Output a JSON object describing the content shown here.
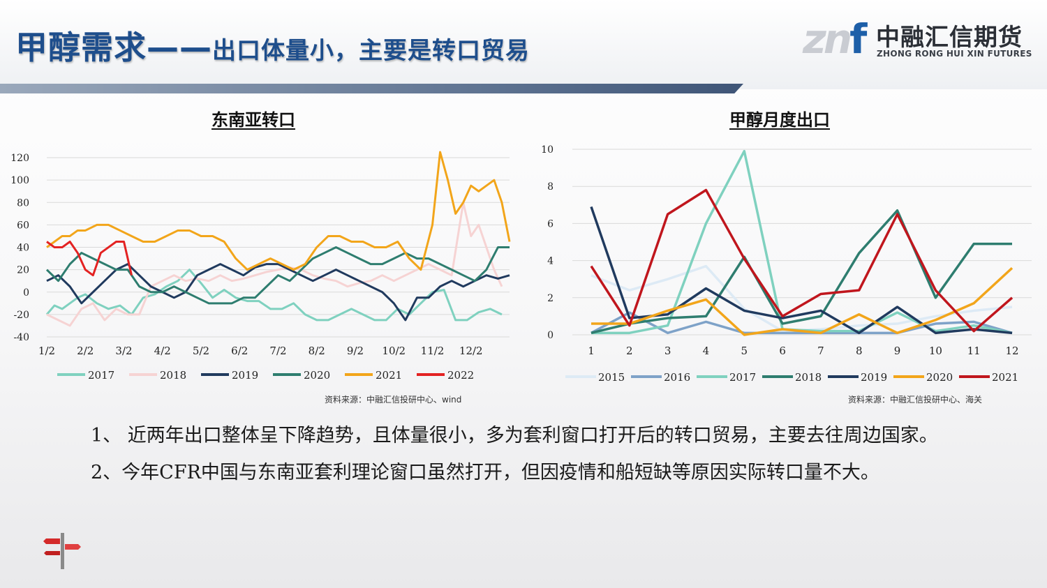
{
  "header": {
    "title_main": "甲醇需求——",
    "title_sub": "出口体量小，主要是转口贸易",
    "logo_cn": "中融汇信期货",
    "logo_en": "ZHONG RONG HUI XIN FUTURES"
  },
  "left": {
    "title": "东南亚转口",
    "source": "资料来源：中融汇信投研中心、wind"
  },
  "right": {
    "title": "甲醇月度出口",
    "source": "资料来源：中融汇信投研中心、海关"
  },
  "bullets": {
    "line1": "1、 近两年出口整体呈下降趋势，且体量很小，多为套利窗口打开后的转口贸易，主要去往周边国家。",
    "line2": "2、今年CFR中国与东南亚套利理论窗口虽然打开，但因疫情和船短缺等原因实际转口量不大。"
  },
  "chart_data": [
    {
      "type": "line",
      "title": "东南亚转口",
      "x_label_values": [
        "1/2",
        "2/2",
        "3/2",
        "4/2",
        "5/2",
        "6/2",
        "7/2",
        "8/2",
        "9/2",
        "10/2",
        "11/2",
        "12/2"
      ],
      "x_domain": [
        0,
        12
      ],
      "ylim": [
        -40,
        130
      ],
      "yticks": [
        -40,
        -20,
        0,
        20,
        40,
        60,
        80,
        100,
        120
      ],
      "grid": true,
      "legend_position": "bottom",
      "series": [
        {
          "name": "2017",
          "color": "#7fd1bf",
          "x": [
            0,
            0.2,
            0.4,
            0.6,
            0.8,
            1.0,
            1.3,
            1.6,
            1.9,
            2.2,
            2.5,
            2.8,
            3.1,
            3.4,
            3.7,
            4.0,
            4.3,
            4.6,
            4.9,
            5.2,
            5.5,
            5.8,
            6.1,
            6.4,
            6.7,
            7.0,
            7.3,
            7.6,
            7.9,
            8.2,
            8.5,
            8.8,
            9.1,
            9.4,
            9.7,
            10.0,
            10.3,
            10.6,
            10.9,
            11.2,
            11.5,
            11.8
          ],
          "y": [
            -20,
            -12,
            -15,
            -10,
            -5,
            -2,
            -10,
            -15,
            -12,
            -20,
            -5,
            -2,
            5,
            10,
            20,
            8,
            -5,
            2,
            -5,
            -8,
            -8,
            -15,
            -15,
            -10,
            -20,
            -25,
            -25,
            -20,
            -15,
            -20,
            -25,
            -25,
            -15,
            -20,
            -10,
            0,
            2,
            -25,
            -25,
            -18,
            -15,
            -20
          ]
        },
        {
          "name": "2018",
          "color": "#f6d3d3",
          "x": [
            0,
            0.3,
            0.6,
            0.9,
            1.2,
            1.5,
            1.8,
            2.1,
            2.4,
            2.7,
            3.0,
            3.3,
            3.6,
            3.9,
            4.2,
            4.5,
            4.8,
            5.1,
            5.4,
            5.7,
            6.0,
            6.3,
            6.6,
            6.9,
            7.2,
            7.5,
            7.8,
            8.1,
            8.4,
            8.7,
            9.0,
            9.3,
            9.6,
            9.9,
            10.2,
            10.5,
            10.8,
            11.0,
            11.2,
            11.4,
            11.6,
            11.8
          ],
          "y": [
            -20,
            -25,
            -30,
            -15,
            -10,
            -25,
            -15,
            -20,
            -20,
            5,
            10,
            15,
            10,
            12,
            10,
            15,
            10,
            12,
            15,
            18,
            20,
            22,
            20,
            15,
            12,
            10,
            5,
            8,
            10,
            15,
            10,
            15,
            20,
            25,
            20,
            15,
            80,
            50,
            60,
            40,
            20,
            5
          ]
        },
        {
          "name": "2019",
          "color": "#203a5e",
          "x": [
            0,
            0.3,
            0.6,
            0.9,
            1.2,
            1.5,
            1.8,
            2.1,
            2.4,
            2.7,
            3.0,
            3.3,
            3.6,
            3.9,
            4.2,
            4.5,
            4.8,
            5.1,
            5.4,
            5.7,
            6.0,
            6.3,
            6.6,
            6.9,
            7.2,
            7.5,
            7.8,
            8.1,
            8.4,
            8.7,
            9.0,
            9.3,
            9.6,
            9.9,
            10.2,
            10.5,
            10.8,
            11.1,
            11.4,
            11.7,
            12.0
          ],
          "y": [
            10,
            15,
            5,
            -10,
            0,
            10,
            20,
            25,
            15,
            5,
            0,
            -5,
            0,
            15,
            20,
            25,
            20,
            15,
            22,
            25,
            25,
            20,
            15,
            10,
            15,
            20,
            15,
            10,
            5,
            0,
            -10,
            -25,
            -5,
            -5,
            5,
            10,
            5,
            10,
            15,
            12,
            15
          ]
        },
        {
          "name": "2020",
          "color": "#2e7d6f",
          "x": [
            0,
            0.3,
            0.6,
            0.9,
            1.2,
            1.5,
            1.8,
            2.1,
            2.4,
            2.7,
            3.0,
            3.3,
            3.6,
            3.9,
            4.2,
            4.5,
            4.8,
            5.1,
            5.4,
            5.7,
            6.0,
            6.3,
            6.6,
            6.9,
            7.2,
            7.5,
            7.8,
            8.1,
            8.4,
            8.7,
            9.0,
            9.3,
            9.6,
            9.9,
            10.2,
            10.5,
            10.8,
            11.1,
            11.4,
            11.7,
            12.0
          ],
          "y": [
            20,
            10,
            25,
            35,
            30,
            25,
            20,
            20,
            5,
            0,
            0,
            5,
            0,
            -5,
            -10,
            -10,
            -10,
            -5,
            -5,
            5,
            15,
            10,
            20,
            30,
            35,
            40,
            35,
            30,
            25,
            25,
            30,
            35,
            30,
            30,
            25,
            20,
            15,
            10,
            20,
            40,
            40
          ]
        },
        {
          "name": "2021",
          "color": "#f2a51a",
          "x": [
            0,
            0.2,
            0.4,
            0.6,
            0.8,
            1.0,
            1.3,
            1.6,
            1.9,
            2.2,
            2.5,
            2.8,
            3.1,
            3.4,
            3.7,
            4.0,
            4.3,
            4.6,
            4.9,
            5.2,
            5.5,
            5.8,
            6.1,
            6.4,
            6.7,
            7.0,
            7.3,
            7.6,
            7.9,
            8.2,
            8.5,
            8.8,
            9.1,
            9.4,
            9.7,
            10.0,
            10.2,
            10.4,
            10.6,
            10.8,
            11.0,
            11.2,
            11.4,
            11.6,
            11.8,
            12.0
          ],
          "y": [
            40,
            45,
            50,
            50,
            55,
            55,
            60,
            60,
            55,
            50,
            45,
            45,
            50,
            55,
            55,
            50,
            50,
            45,
            30,
            20,
            25,
            30,
            25,
            20,
            25,
            40,
            50,
            50,
            45,
            45,
            40,
            40,
            45,
            30,
            20,
            60,
            125,
            100,
            70,
            80,
            95,
            90,
            95,
            100,
            80,
            45
          ]
        },
        {
          "name": "2022",
          "color": "#e32222",
          "x": [
            0,
            0.2,
            0.4,
            0.6,
            0.8,
            1.0,
            1.2,
            1.4,
            1.6,
            1.8,
            2.0,
            2.2
          ],
          "y": [
            45,
            40,
            40,
            45,
            35,
            20,
            15,
            35,
            40,
            45,
            45,
            15
          ]
        }
      ]
    },
    {
      "type": "line",
      "title": "甲醇月度出口",
      "categories": [
        "1",
        "2",
        "3",
        "4",
        "5",
        "6",
        "7",
        "8",
        "9",
        "10",
        "11",
        "12"
      ],
      "ylim": [
        0,
        10
      ],
      "yticks": [
        0,
        2,
        4,
        6,
        8,
        10
      ],
      "grid": true,
      "legend_position": "bottom",
      "series": [
        {
          "name": "2015",
          "color": "#ddeaf5",
          "values": [
            3.2,
            2.4,
            3.0,
            3.7,
            1.4,
            0.2,
            0.3,
            0.5,
            0.6,
            1.0,
            1.3,
            1.5
          ]
        },
        {
          "name": "2016",
          "color": "#7ea2c8",
          "values": [
            0.1,
            1.2,
            0.1,
            0.7,
            0.1,
            0.1,
            0.1,
            0.1,
            0.1,
            0.6,
            0.7,
            0.1
          ]
        },
        {
          "name": "2017",
          "color": "#7fd1bf",
          "values": [
            0.1,
            0.1,
            0.5,
            6.0,
            9.9,
            0.3,
            0.2,
            0.2,
            1.2,
            0.2,
            0.5,
            0.1
          ]
        },
        {
          "name": "2018",
          "color": "#2e7d6f",
          "values": [
            0.1,
            0.6,
            0.9,
            1.0,
            4.2,
            0.6,
            1.0,
            4.4,
            6.7,
            2.0,
            4.9,
            4.9
          ]
        },
        {
          "name": "2019",
          "color": "#203a5e",
          "values": [
            6.9,
            0.9,
            1.1,
            2.5,
            1.3,
            0.9,
            1.3,
            0.1,
            1.5,
            0.1,
            0.3,
            0.1
          ]
        },
        {
          "name": "2020",
          "color": "#f2a51a",
          "values": [
            0.6,
            0.6,
            1.3,
            1.9,
            0.0,
            0.3,
            0.1,
            1.1,
            0.1,
            0.8,
            1.7,
            3.6
          ]
        },
        {
          "name": "2021",
          "color": "#c0161d",
          "values": [
            3.7,
            0.5,
            6.5,
            7.8,
            4.1,
            1.0,
            2.2,
            2.4,
            6.5,
            2.4,
            0.2,
            2.0
          ]
        }
      ]
    }
  ]
}
